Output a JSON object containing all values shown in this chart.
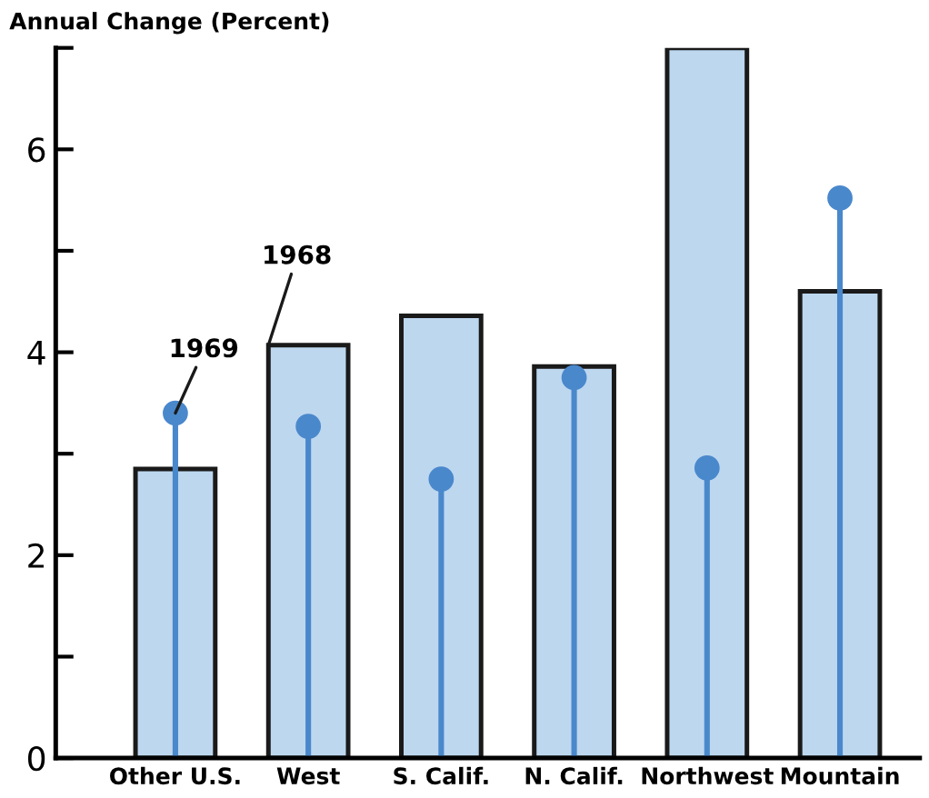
{
  "chart_data": {
    "type": "bar",
    "ylabel": "Annual Change (Percent)",
    "categories": [
      "Other U.S.",
      "West",
      "S. Calif.",
      "N. Calif.",
      "Northwest",
      "Mountain"
    ],
    "series": [
      {
        "name": "1968",
        "color": "#bdd7ef",
        "values": [
          2.85,
          4.07,
          4.36,
          3.86,
          7.0,
          4.6
        ]
      },
      {
        "name": "1969",
        "type": "lollipop",
        "color": "#4a88cc",
        "values": [
          3.4,
          3.27,
          2.75,
          3.75,
          2.86,
          5.52
        ]
      }
    ],
    "ylim": [
      0,
      7
    ],
    "yticks": [
      0,
      {
        "value": 1,
        "label": null
      },
      2,
      {
        "value": 3,
        "label": null
      },
      4,
      {
        "value": 5,
        "label": null
      },
      6,
      {
        "value": 7,
        "label": null
      }
    ],
    "grid": false,
    "legend": false,
    "marker": "circle"
  }
}
